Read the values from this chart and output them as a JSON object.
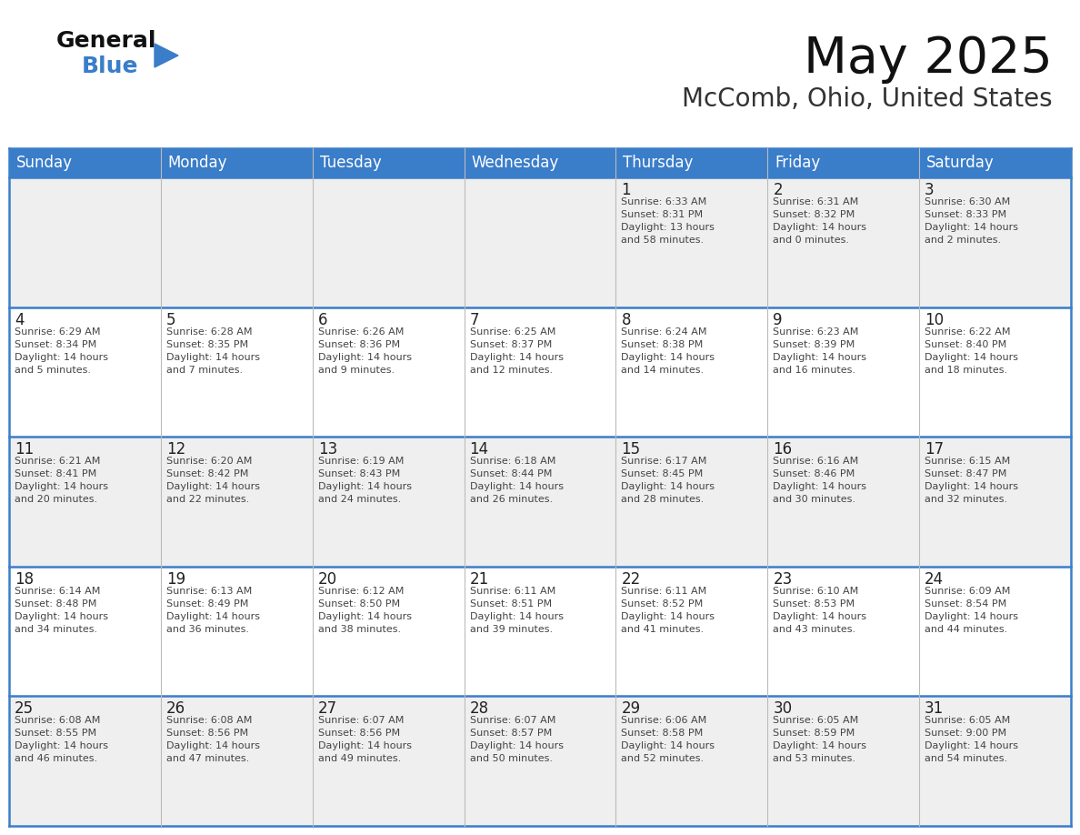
{
  "title": "May 2025",
  "subtitle": "McComb, Ohio, United States",
  "days_of_week": [
    "Sunday",
    "Monday",
    "Tuesday",
    "Wednesday",
    "Thursday",
    "Friday",
    "Saturday"
  ],
  "header_bg": "#3A7DC9",
  "header_text": "#FFFFFF",
  "cell_bg_white": "#FFFFFF",
  "cell_bg_gray": "#EFEFEF",
  "text_color": "#444444",
  "border_color": "#2E5F8A",
  "separator_color": "#3A7DC9",
  "general_black": "#111111",
  "general_blue": "#3A7DC9",
  "calendar_data": [
    [
      null,
      null,
      null,
      null,
      {
        "day": 1,
        "sunrise": "6:33 AM",
        "sunset": "8:31 PM",
        "daylight_hours": 13,
        "daylight_minutes": 58
      },
      {
        "day": 2,
        "sunrise": "6:31 AM",
        "sunset": "8:32 PM",
        "daylight_hours": 14,
        "daylight_minutes": 0
      },
      {
        "day": 3,
        "sunrise": "6:30 AM",
        "sunset": "8:33 PM",
        "daylight_hours": 14,
        "daylight_minutes": 2
      }
    ],
    [
      {
        "day": 4,
        "sunrise": "6:29 AM",
        "sunset": "8:34 PM",
        "daylight_hours": 14,
        "daylight_minutes": 5
      },
      {
        "day": 5,
        "sunrise": "6:28 AM",
        "sunset": "8:35 PM",
        "daylight_hours": 14,
        "daylight_minutes": 7
      },
      {
        "day": 6,
        "sunrise": "6:26 AM",
        "sunset": "8:36 PM",
        "daylight_hours": 14,
        "daylight_minutes": 9
      },
      {
        "day": 7,
        "sunrise": "6:25 AM",
        "sunset": "8:37 PM",
        "daylight_hours": 14,
        "daylight_minutes": 12
      },
      {
        "day": 8,
        "sunrise": "6:24 AM",
        "sunset": "8:38 PM",
        "daylight_hours": 14,
        "daylight_minutes": 14
      },
      {
        "day": 9,
        "sunrise": "6:23 AM",
        "sunset": "8:39 PM",
        "daylight_hours": 14,
        "daylight_minutes": 16
      },
      {
        "day": 10,
        "sunrise": "6:22 AM",
        "sunset": "8:40 PM",
        "daylight_hours": 14,
        "daylight_minutes": 18
      }
    ],
    [
      {
        "day": 11,
        "sunrise": "6:21 AM",
        "sunset": "8:41 PM",
        "daylight_hours": 14,
        "daylight_minutes": 20
      },
      {
        "day": 12,
        "sunrise": "6:20 AM",
        "sunset": "8:42 PM",
        "daylight_hours": 14,
        "daylight_minutes": 22
      },
      {
        "day": 13,
        "sunrise": "6:19 AM",
        "sunset": "8:43 PM",
        "daylight_hours": 14,
        "daylight_minutes": 24
      },
      {
        "day": 14,
        "sunrise": "6:18 AM",
        "sunset": "8:44 PM",
        "daylight_hours": 14,
        "daylight_minutes": 26
      },
      {
        "day": 15,
        "sunrise": "6:17 AM",
        "sunset": "8:45 PM",
        "daylight_hours": 14,
        "daylight_minutes": 28
      },
      {
        "day": 16,
        "sunrise": "6:16 AM",
        "sunset": "8:46 PM",
        "daylight_hours": 14,
        "daylight_minutes": 30
      },
      {
        "day": 17,
        "sunrise": "6:15 AM",
        "sunset": "8:47 PM",
        "daylight_hours": 14,
        "daylight_minutes": 32
      }
    ],
    [
      {
        "day": 18,
        "sunrise": "6:14 AM",
        "sunset": "8:48 PM",
        "daylight_hours": 14,
        "daylight_minutes": 34
      },
      {
        "day": 19,
        "sunrise": "6:13 AM",
        "sunset": "8:49 PM",
        "daylight_hours": 14,
        "daylight_minutes": 36
      },
      {
        "day": 20,
        "sunrise": "6:12 AM",
        "sunset": "8:50 PM",
        "daylight_hours": 14,
        "daylight_minutes": 38
      },
      {
        "day": 21,
        "sunrise": "6:11 AM",
        "sunset": "8:51 PM",
        "daylight_hours": 14,
        "daylight_minutes": 39
      },
      {
        "day": 22,
        "sunrise": "6:11 AM",
        "sunset": "8:52 PM",
        "daylight_hours": 14,
        "daylight_minutes": 41
      },
      {
        "day": 23,
        "sunrise": "6:10 AM",
        "sunset": "8:53 PM",
        "daylight_hours": 14,
        "daylight_minutes": 43
      },
      {
        "day": 24,
        "sunrise": "6:09 AM",
        "sunset": "8:54 PM",
        "daylight_hours": 14,
        "daylight_minutes": 44
      }
    ],
    [
      {
        "day": 25,
        "sunrise": "6:08 AM",
        "sunset": "8:55 PM",
        "daylight_hours": 14,
        "daylight_minutes": 46
      },
      {
        "day": 26,
        "sunrise": "6:08 AM",
        "sunset": "8:56 PM",
        "daylight_hours": 14,
        "daylight_minutes": 47
      },
      {
        "day": 27,
        "sunrise": "6:07 AM",
        "sunset": "8:56 PM",
        "daylight_hours": 14,
        "daylight_minutes": 49
      },
      {
        "day": 28,
        "sunrise": "6:07 AM",
        "sunset": "8:57 PM",
        "daylight_hours": 14,
        "daylight_minutes": 50
      },
      {
        "day": 29,
        "sunrise": "6:06 AM",
        "sunset": "8:58 PM",
        "daylight_hours": 14,
        "daylight_minutes": 52
      },
      {
        "day": 30,
        "sunrise": "6:05 AM",
        "sunset": "8:59 PM",
        "daylight_hours": 14,
        "daylight_minutes": 53
      },
      {
        "day": 31,
        "sunrise": "6:05 AM",
        "sunset": "9:00 PM",
        "daylight_hours": 14,
        "daylight_minutes": 54
      }
    ]
  ]
}
